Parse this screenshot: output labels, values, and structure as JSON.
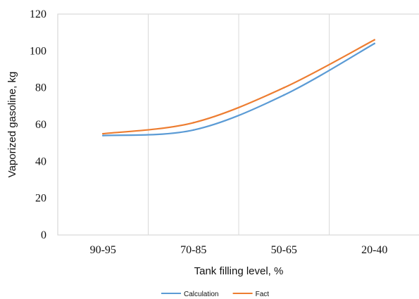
{
  "chart_data": {
    "type": "line",
    "title": "",
    "xlabel": "Tank filling level, %",
    "ylabel": "Vaporized gasoline, kg",
    "categories": [
      "90-95",
      "70-85",
      "50-65",
      "20-40"
    ],
    "ylim": [
      0,
      120
    ],
    "yticks": [
      0,
      20,
      40,
      60,
      80,
      100,
      120
    ],
    "grid": "vertical",
    "legend_position": "bottom",
    "series": [
      {
        "name": "Calculation",
        "color": "#5b9bd5",
        "values": [
          54,
          57,
          76,
          104
        ]
      },
      {
        "name": "Fact",
        "color": "#ed7d31",
        "values": [
          55,
          61,
          80,
          106
        ]
      }
    ]
  }
}
